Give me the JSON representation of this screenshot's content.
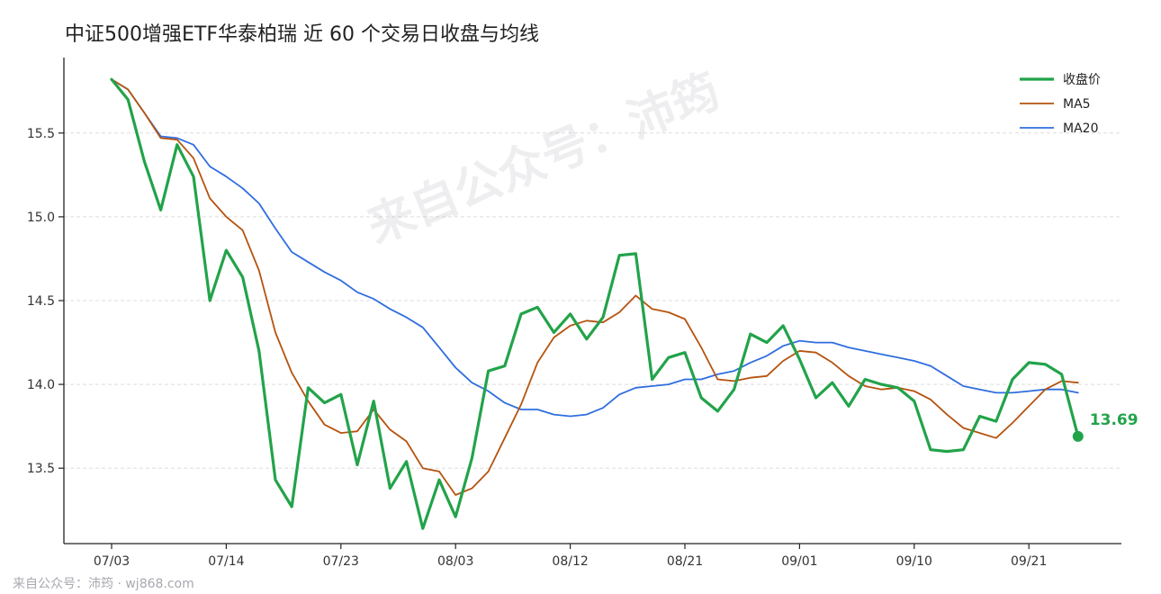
{
  "chart_data": {
    "type": "line",
    "title": "中证500增强ETF华泰柏瑞 近 60 个交易日收盘与均线",
    "x_tick_labels": [
      "07/03",
      "07/14",
      "07/23",
      "08/03",
      "08/12",
      "08/21",
      "09/01",
      "09/10",
      "09/21"
    ],
    "x_tick_indices": [
      0,
      7,
      14,
      21,
      28,
      35,
      42,
      49,
      56
    ],
    "y_ticks": [
      13.5,
      14.0,
      14.5,
      15.0,
      15.5
    ],
    "ylim": [
      13.05,
      15.95
    ],
    "grid": "horizontal dashed",
    "legend_placement": "top-right",
    "series": [
      {
        "name": "收盘价",
        "color": "#22a34a",
        "values": [
          15.82,
          15.7,
          15.33,
          15.04,
          15.43,
          15.24,
          14.5,
          14.8,
          14.64,
          14.2,
          13.43,
          13.27,
          13.98,
          13.89,
          13.94,
          13.52,
          13.9,
          13.38,
          13.54,
          13.14,
          13.43,
          13.21,
          13.56,
          14.08,
          14.11,
          14.42,
          14.46,
          14.31,
          14.42,
          14.27,
          14.4,
          14.77,
          14.78,
          14.03,
          14.16,
          14.19,
          13.92,
          13.84,
          13.97,
          14.3,
          14.25,
          14.35,
          14.15,
          13.92,
          14.01,
          13.87,
          14.03,
          14.0,
          13.98,
          13.9,
          13.61,
          13.6,
          13.61,
          13.81,
          13.78,
          14.03,
          14.13,
          14.12,
          14.06,
          13.69
        ]
      },
      {
        "name": "MA5",
        "color": "#b5530f",
        "values": [
          15.82,
          15.76,
          15.62,
          15.47,
          15.46,
          15.35,
          15.11,
          15.0,
          14.92,
          14.68,
          14.31,
          14.07,
          13.9,
          13.76,
          13.71,
          13.72,
          13.85,
          13.73,
          13.66,
          13.5,
          13.48,
          13.34,
          13.38,
          13.48,
          13.68,
          13.88,
          14.13,
          14.28,
          14.35,
          14.38,
          14.37,
          14.43,
          14.53,
          14.45,
          14.43,
          14.39,
          14.22,
          14.03,
          14.02,
          14.04,
          14.05,
          14.14,
          14.2,
          14.19,
          14.13,
          14.05,
          13.99,
          13.97,
          13.98,
          13.96,
          13.91,
          13.82,
          13.74,
          13.71,
          13.68,
          13.77,
          13.87,
          13.97,
          14.02,
          14.01
        ]
      },
      {
        "name": "MA20",
        "color": "#2f6ee0",
        "values": [
          15.82,
          15.76,
          15.62,
          15.48,
          15.47,
          15.43,
          15.3,
          15.24,
          15.17,
          15.08,
          14.93,
          14.79,
          14.73,
          14.67,
          14.62,
          14.55,
          14.51,
          14.45,
          14.4,
          14.34,
          14.22,
          14.1,
          14.01,
          13.96,
          13.89,
          13.85,
          13.85,
          13.82,
          13.81,
          13.82,
          13.86,
          13.94,
          13.98,
          13.99,
          14.0,
          14.03,
          14.03,
          14.06,
          14.08,
          14.13,
          14.17,
          14.23,
          14.26,
          14.25,
          14.25,
          14.22,
          14.2,
          14.18,
          14.16,
          14.14,
          14.11,
          14.05,
          13.99,
          13.97,
          13.95,
          13.95,
          13.96,
          13.97,
          13.97,
          13.95
        ]
      }
    ],
    "last_point_label": "13.69"
  },
  "watermark_text": "来自公众号：沛筠",
  "footer_text": "来自公众号：沛筠 · wj868.com"
}
